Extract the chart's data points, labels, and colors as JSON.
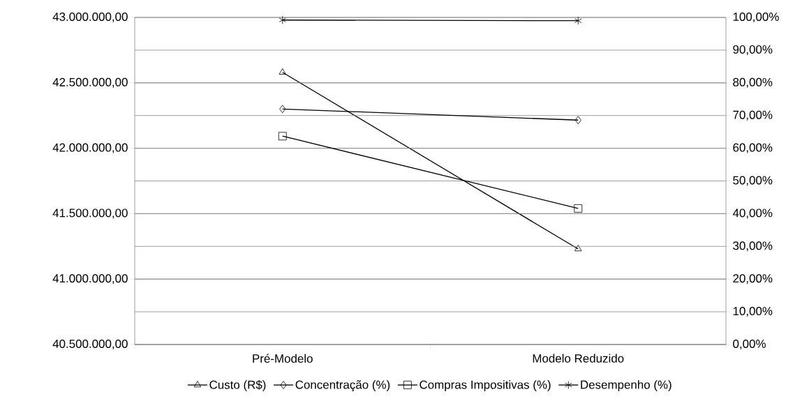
{
  "chart_data": {
    "type": "line",
    "categories": [
      "Pré-Modelo",
      "Modelo Reduzido"
    ],
    "series": [
      {
        "name": "Custo (R$)",
        "color": "#000000",
        "marker": "triangle",
        "values": [
          42580000,
          41230000
        ]
      },
      {
        "name": "Concentração (%)",
        "color": "#000000",
        "marker": "diamond",
        "axis": "y2",
        "values": [
          72.0,
          68.6
        ]
      },
      {
        "name": "Compras Impositivas (%)",
        "color": "#000000",
        "marker": "square",
        "axis": "y2",
        "values": [
          63.7,
          41.6
        ]
      },
      {
        "name": "Desempenho (%)",
        "color": "#000000",
        "marker": "cross",
        "axis": "y2",
        "values": [
          99.2,
          99.0
        ]
      }
    ],
    "ylim": [
      40500000,
      43000000
    ],
    "yticks": [
      {
        "value": 40500000,
        "label": "40.500.000,00"
      },
      {
        "value": 41000000,
        "label": "41.000.000,00"
      },
      {
        "value": 41500000,
        "label": "41.500.000,00"
      },
      {
        "value": 42000000,
        "label": "42.000.000,00"
      },
      {
        "value": 42500000,
        "label": "42.500.000,00"
      },
      {
        "value": 43000000,
        "label": "43.000.000,00"
      }
    ],
    "y2lim": [
      0,
      100
    ],
    "y2ticks": [
      {
        "value": 0,
        "label": "0,00%"
      },
      {
        "value": 10,
        "label": "10,00%"
      },
      {
        "value": 20,
        "label": "20,00%"
      },
      {
        "value": 30,
        "label": "30,00%"
      },
      {
        "value": 40,
        "label": "40,00%"
      },
      {
        "value": 50,
        "label": "50,00%"
      },
      {
        "value": 60,
        "label": "60,00%"
      },
      {
        "value": 70,
        "label": "70,00%"
      },
      {
        "value": 80,
        "label": "80,00%"
      },
      {
        "value": 90,
        "label": "90,00%"
      },
      {
        "value": 100,
        "label": "100,00%"
      }
    ],
    "grid": "y",
    "legend": "bottom",
    "line_style": "solid"
  }
}
